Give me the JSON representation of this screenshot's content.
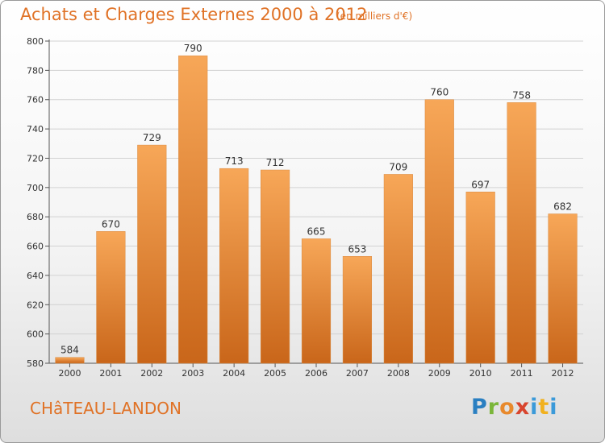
{
  "title": "Achats et Charges Externes 2000 à 2012",
  "subtitle": "(en milliers d'€)",
  "city": "CHâTEAU-LANDON",
  "logo": {
    "letters": [
      "P",
      "r",
      "o",
      "x",
      "i",
      "t",
      "i"
    ]
  },
  "colors": {
    "bar_top": "#f7a758",
    "bar_bottom": "#c9661a",
    "text_accent": "#e07226"
  },
  "chart_data": {
    "type": "bar",
    "title": "Achats et Charges Externes 2000 à 2012",
    "subtitle": "(en milliers d'€)",
    "xlabel": "",
    "ylabel": "",
    "categories": [
      "2000",
      "2001",
      "2002",
      "2003",
      "2004",
      "2005",
      "2006",
      "2007",
      "2008",
      "2009",
      "2010",
      "2011",
      "2012"
    ],
    "values": [
      584,
      670,
      729,
      790,
      713,
      712,
      665,
      653,
      709,
      760,
      697,
      758,
      682
    ],
    "ylim": [
      580,
      800
    ],
    "yticks": [
      580,
      600,
      620,
      640,
      660,
      680,
      700,
      720,
      740,
      760,
      780,
      800
    ],
    "grid": true,
    "legend": "none"
  }
}
